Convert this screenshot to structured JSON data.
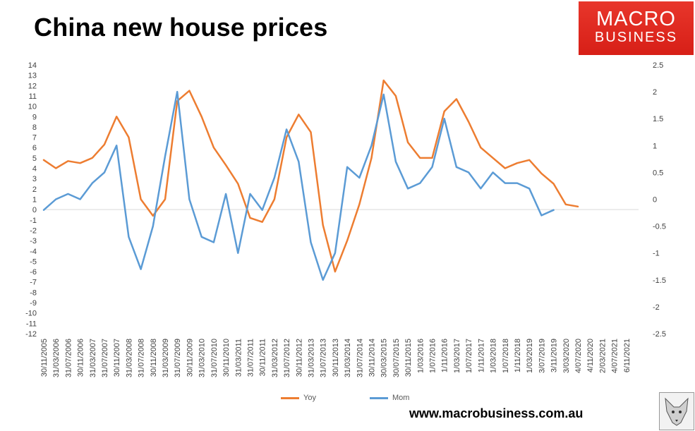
{
  "title": "China new house prices",
  "logo": {
    "line1": "MACRO",
    "line2": "BUSINESS"
  },
  "footer": "www.macrobusiness.com.au",
  "chart_data": {
    "type": "line",
    "title": "China new house prices",
    "y_left": {
      "min": -12,
      "max": 14,
      "step": 1
    },
    "y_right": {
      "min": -2.5,
      "max": 2.5,
      "step": 0.5
    },
    "x_tick_labels": [
      "30/11/2005",
      "31/03/2006",
      "31/07/2006",
      "30/11/2006",
      "31/03/2007",
      "31/07/2007",
      "30/11/2007",
      "31/03/2008",
      "31/07/2008",
      "30/11/2008",
      "31/03/2009",
      "31/07/2009",
      "30/11/2009",
      "31/03/2010",
      "31/07/2010",
      "30/11/2010",
      "31/03/2011",
      "31/07/2011",
      "30/11/2011",
      "31/03/2012",
      "31/07/2012",
      "30/11/2012",
      "31/03/2013",
      "31/07/2013",
      "30/11/2013",
      "31/03/2014",
      "31/07/2014",
      "30/11/2014",
      "30/03/2015",
      "30/07/2015",
      "30/11/2015",
      "1/03/2016",
      "1/07/2016",
      "1/11/2016",
      "1/03/2017",
      "1/07/2017",
      "1/11/2017",
      "1/03/2018",
      "1/07/2018",
      "1/11/2018",
      "1/03/2019",
      "3/07/2019",
      "3/11/2019",
      "3/03/2020",
      "4/07/2020",
      "4/11/2020",
      "2/03/2021",
      "4/07/2021",
      "6/11/2021"
    ],
    "x_extent": [
      0,
      49
    ],
    "grid": false,
    "legend_position": "bottom",
    "series": [
      {
        "name": "Yoy",
        "axis": "left",
        "color": "#ed7d31",
        "x": [
          0,
          1,
          2,
          3,
          4,
          5,
          6,
          7,
          8,
          9,
          10,
          11,
          12,
          13,
          14,
          15,
          16,
          17,
          18,
          19,
          20,
          21,
          22,
          23,
          24,
          25,
          26,
          27,
          28,
          29,
          30,
          31,
          32,
          33,
          34,
          35,
          36,
          37,
          38,
          39,
          40,
          41,
          42,
          43,
          44,
          45,
          46,
          47,
          48,
          49
        ],
        "values": [
          4.8,
          4.0,
          4.7,
          4.5,
          5.0,
          6.3,
          9.0,
          7.0,
          1.0,
          -0.6,
          1.0,
          10.5,
          11.5,
          9.0,
          6.0,
          4.3,
          2.5,
          -0.8,
          -1.2,
          1.0,
          7.0,
          9.2,
          7.5,
          -1.5,
          -6.0,
          -3.0,
          0.5,
          5.0,
          12.5,
          11.0,
          6.5,
          5.0,
          5.0,
          9.5,
          10.7,
          8.5,
          6.0,
          5.0,
          4.0,
          4.5,
          4.8,
          3.5,
          2.5,
          0.5,
          0.3,
          null,
          null,
          null,
          null,
          null
        ]
      },
      {
        "name": "Mom",
        "axis": "right",
        "color": "#5b9bd5",
        "x": [
          0,
          1,
          2,
          3,
          4,
          5,
          6,
          7,
          8,
          9,
          10,
          11,
          12,
          13,
          14,
          15,
          16,
          17,
          18,
          19,
          20,
          21,
          22,
          23,
          24,
          25,
          26,
          27,
          28,
          29,
          30,
          31,
          32,
          33,
          34,
          35,
          36,
          37,
          38,
          39,
          40,
          41,
          42,
          43,
          44,
          45,
          46,
          47,
          48,
          49
        ],
        "values": [
          -0.2,
          0.0,
          0.1,
          0.0,
          0.3,
          0.5,
          1.0,
          -0.7,
          -1.3,
          -0.5,
          0.8,
          2.0,
          0.0,
          -0.7,
          -0.8,
          0.1,
          -1.0,
          0.1,
          -0.2,
          0.4,
          1.3,
          0.7,
          -0.8,
          -1.5,
          -1.0,
          0.6,
          0.4,
          1.0,
          1.95,
          0.7,
          0.2,
          0.3,
          0.6,
          1.5,
          0.6,
          0.5,
          0.2,
          0.5,
          0.3,
          0.3,
          0.2,
          -0.3,
          -0.2,
          null,
          null,
          null,
          null,
          null,
          null,
          null
        ]
      }
    ]
  }
}
